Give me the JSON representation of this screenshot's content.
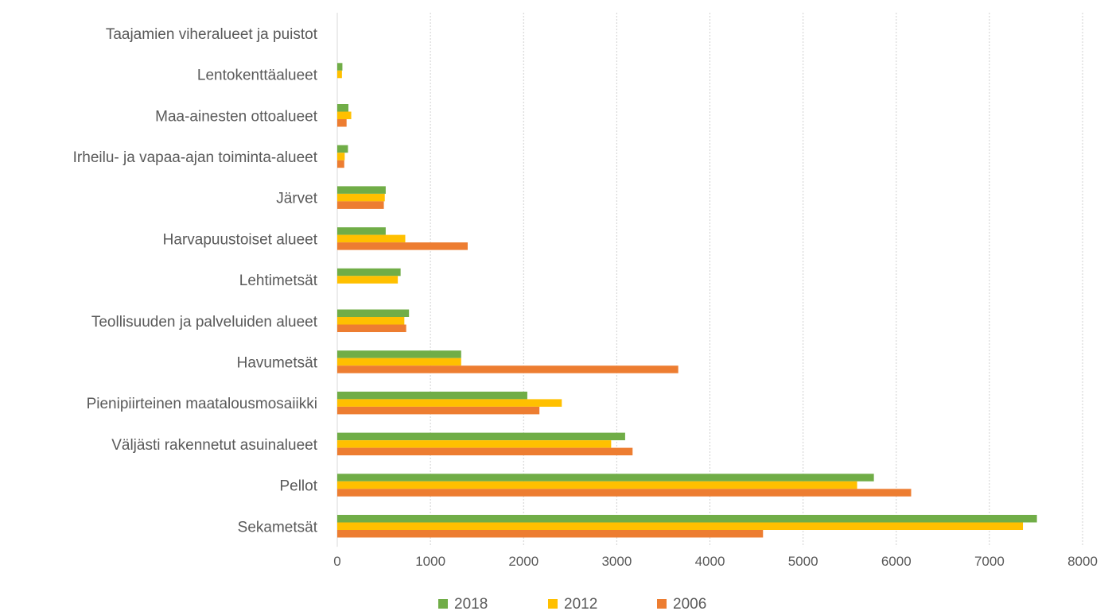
{
  "chart_data": {
    "type": "bar",
    "orientation": "horizontal",
    "title": "",
    "xlabel": "",
    "ylabel": "",
    "xlim": [
      0,
      8000
    ],
    "x_ticks": [
      "0",
      "1000",
      "2000",
      "3000",
      "4000",
      "5000",
      "6000",
      "7000",
      "8000"
    ],
    "grid": true,
    "legend_position": "bottom",
    "categories": [
      "Taajamien viheralueet ja puistot",
      "Lentokenttäalueet",
      "Maa-ainesten ottoalueet",
      "Irheilu- ja vapaa-ajan toiminta-alueet",
      "Järvet",
      "Harvapuustoiset alueet",
      "Lehtimetsät",
      "Teollisuuden ja palveluiden alueet",
      "Havumetsät",
      "Pienipiirteinen maatalousmosaiikki",
      "Väljästi rakennetut asuinalueet",
      "Pellot",
      "Sekametsät"
    ],
    "series": [
      {
        "name": "2018",
        "color": "#70ad47",
        "values": [
          0,
          55,
          120,
          115,
          520,
          520,
          680,
          770,
          1330,
          2040,
          3090,
          5760,
          7510
        ]
      },
      {
        "name": "2012",
        "color": "#ffc000",
        "values": [
          0,
          50,
          150,
          80,
          510,
          730,
          650,
          720,
          1330,
          2410,
          2940,
          5580,
          7360
        ]
      },
      {
        "name": "2006",
        "color": "#ed7d31",
        "values": [
          0,
          0,
          100,
          75,
          500,
          1400,
          0,
          740,
          3660,
          2170,
          3170,
          6160,
          4570
        ]
      }
    ]
  }
}
